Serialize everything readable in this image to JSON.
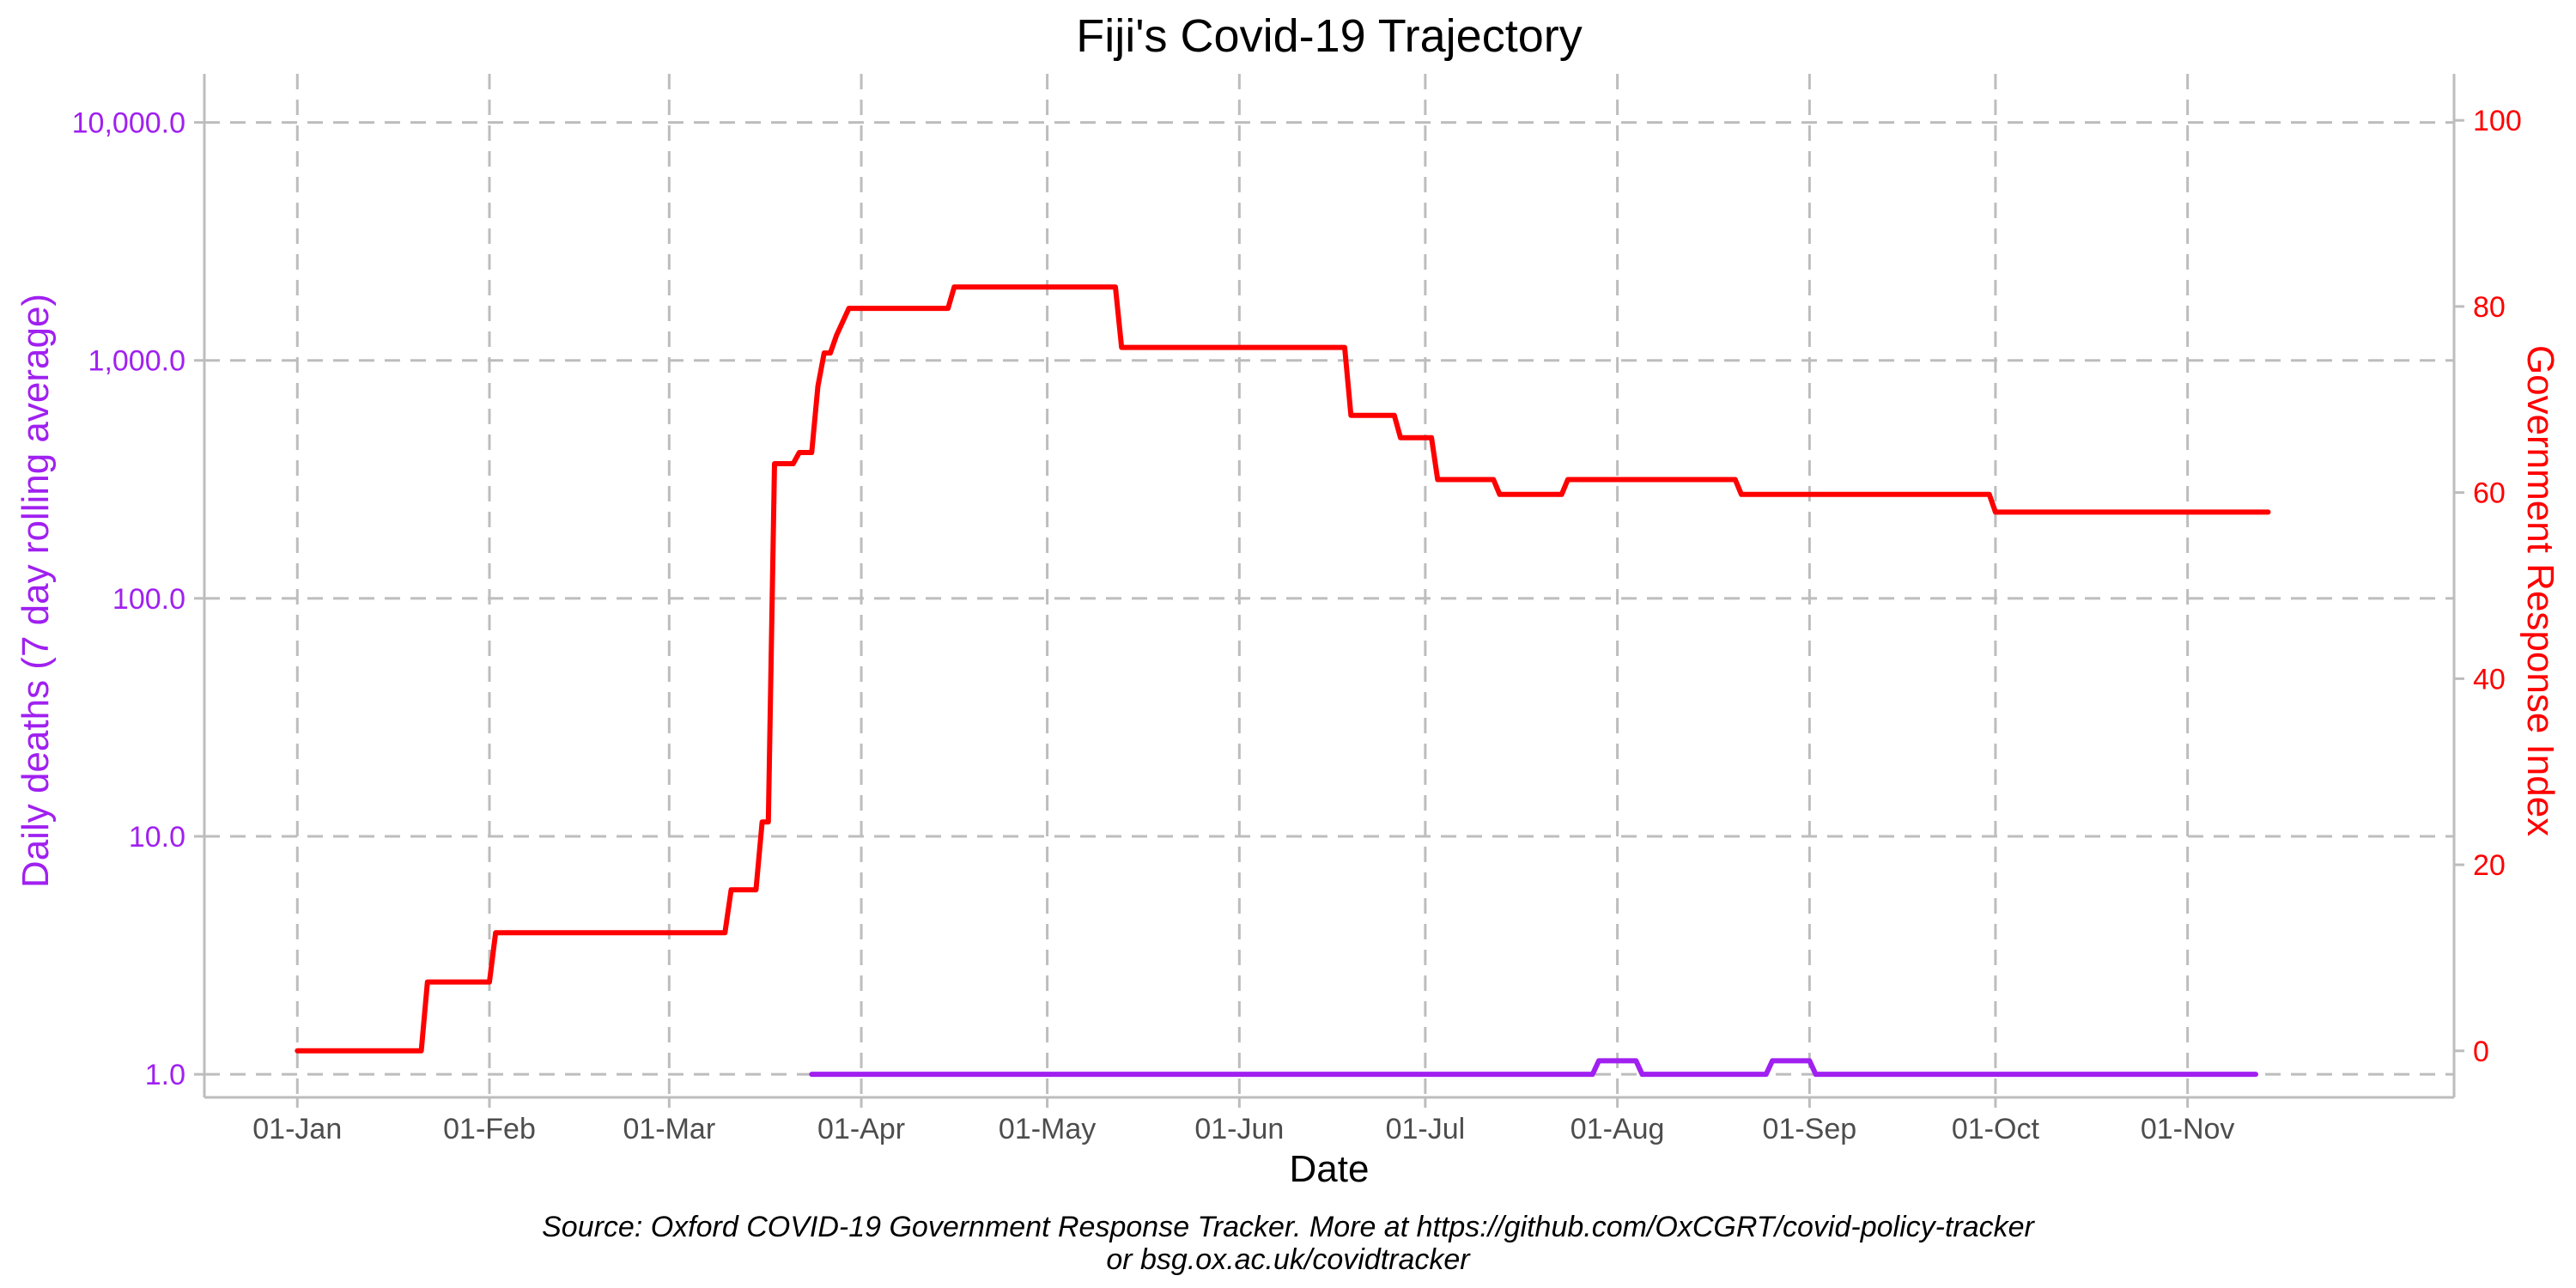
{
  "chart_data": {
    "type": "line",
    "title": "Fiji's Covid-19 Trajectory",
    "xlabel": "Date",
    "ylabel_left": "Daily deaths (7 day rolling average)",
    "ylabel_right": "Government Response Index",
    "left_axis_scale": "log10",
    "ylim_left": [
      0.8,
      16000
    ],
    "ylim_right": [
      -5,
      105
    ],
    "xlim": [
      "2019-12-17",
      "2020-12-14"
    ],
    "grid": true,
    "legend": "none",
    "x_ticks": [
      {
        "date": "2020-01-01",
        "label": "01-Jan"
      },
      {
        "date": "2020-02-01",
        "label": "01-Feb"
      },
      {
        "date": "2020-03-01",
        "label": "01-Mar"
      },
      {
        "date": "2020-04-01",
        "label": "01-Apr"
      },
      {
        "date": "2020-05-01",
        "label": "01-May"
      },
      {
        "date": "2020-06-01",
        "label": "01-Jun"
      },
      {
        "date": "2020-07-01",
        "label": "01-Jul"
      },
      {
        "date": "2020-08-01",
        "label": "01-Aug"
      },
      {
        "date": "2020-09-01",
        "label": "01-Sep"
      },
      {
        "date": "2020-10-01",
        "label": "01-Oct"
      },
      {
        "date": "2020-11-01",
        "label": "01-Nov"
      }
    ],
    "y_ticks_left": [
      {
        "value": 1,
        "label": "1.0"
      },
      {
        "value": 10,
        "label": "10.0"
      },
      {
        "value": 100,
        "label": "100.0"
      },
      {
        "value": 1000,
        "label": "1,000.0"
      },
      {
        "value": 10000,
        "label": "10,000.0"
      }
    ],
    "y_ticks_right": [
      {
        "value": 0,
        "label": "0"
      },
      {
        "value": 20,
        "label": "20"
      },
      {
        "value": 40,
        "label": "40"
      },
      {
        "value": 60,
        "label": "60"
      },
      {
        "value": 80,
        "label": "80"
      },
      {
        "value": 100,
        "label": "100"
      }
    ],
    "series": [
      {
        "axis": "left",
        "color": "#a020f0",
        "step": true,
        "points": [
          [
            "2020-03-24",
            1.0
          ],
          [
            "2020-07-28",
            1.0
          ],
          [
            "2020-07-29",
            1.14
          ],
          [
            "2020-08-04",
            1.14
          ],
          [
            "2020-08-05",
            1.0
          ],
          [
            "2020-08-25",
            1.0
          ],
          [
            "2020-08-26",
            1.14
          ],
          [
            "2020-09-01",
            1.14
          ],
          [
            "2020-09-02",
            1.0
          ],
          [
            "2020-11-12",
            1.0
          ]
        ]
      },
      {
        "axis": "right",
        "color": "#ff0000",
        "step": true,
        "points": [
          [
            "2020-01-01",
            0
          ],
          [
            "2020-01-21",
            0
          ],
          [
            "2020-01-22",
            7.4
          ],
          [
            "2020-02-01",
            7.4
          ],
          [
            "2020-02-02",
            12.7
          ],
          [
            "2020-03-10",
            12.7
          ],
          [
            "2020-03-11",
            17.3
          ],
          [
            "2020-03-15",
            17.3
          ],
          [
            "2020-03-16",
            24.6
          ],
          [
            "2020-03-17",
            24.6
          ],
          [
            "2020-03-18",
            63.1
          ],
          [
            "2020-03-21",
            63.1
          ],
          [
            "2020-03-22",
            64.3
          ],
          [
            "2020-03-24",
            64.3
          ],
          [
            "2020-03-25",
            71.4
          ],
          [
            "2020-03-26",
            75.0
          ],
          [
            "2020-03-27",
            75.0
          ],
          [
            "2020-03-28",
            76.9
          ],
          [
            "2020-03-30",
            79.8
          ],
          [
            "2020-04-15",
            79.8
          ],
          [
            "2020-04-16",
            82.1
          ],
          [
            "2020-05-12",
            82.1
          ],
          [
            "2020-05-13",
            75.6
          ],
          [
            "2020-06-18",
            75.6
          ],
          [
            "2020-06-19",
            68.3
          ],
          [
            "2020-06-26",
            68.3
          ],
          [
            "2020-06-27",
            65.9
          ],
          [
            "2020-07-02",
            65.9
          ],
          [
            "2020-07-03",
            61.4
          ],
          [
            "2020-07-12",
            61.4
          ],
          [
            "2020-07-13",
            59.8
          ],
          [
            "2020-07-23",
            59.8
          ],
          [
            "2020-07-24",
            61.4
          ],
          [
            "2020-08-20",
            61.4
          ],
          [
            "2020-08-21",
            59.8
          ],
          [
            "2020-09-30",
            59.8
          ],
          [
            "2020-10-01",
            57.9
          ],
          [
            "2020-11-14",
            57.9
          ]
        ]
      }
    ]
  },
  "source": {
    "line1": "Source: Oxford COVID-19 Government Response Tracker. More at https://github.com/OxCGRT/covid-policy-tracker",
    "line2": "or bsg.ox.ac.uk/covidtracker"
  },
  "colors": {
    "left_axis": "#a020f0",
    "right_axis": "#ff0000"
  }
}
